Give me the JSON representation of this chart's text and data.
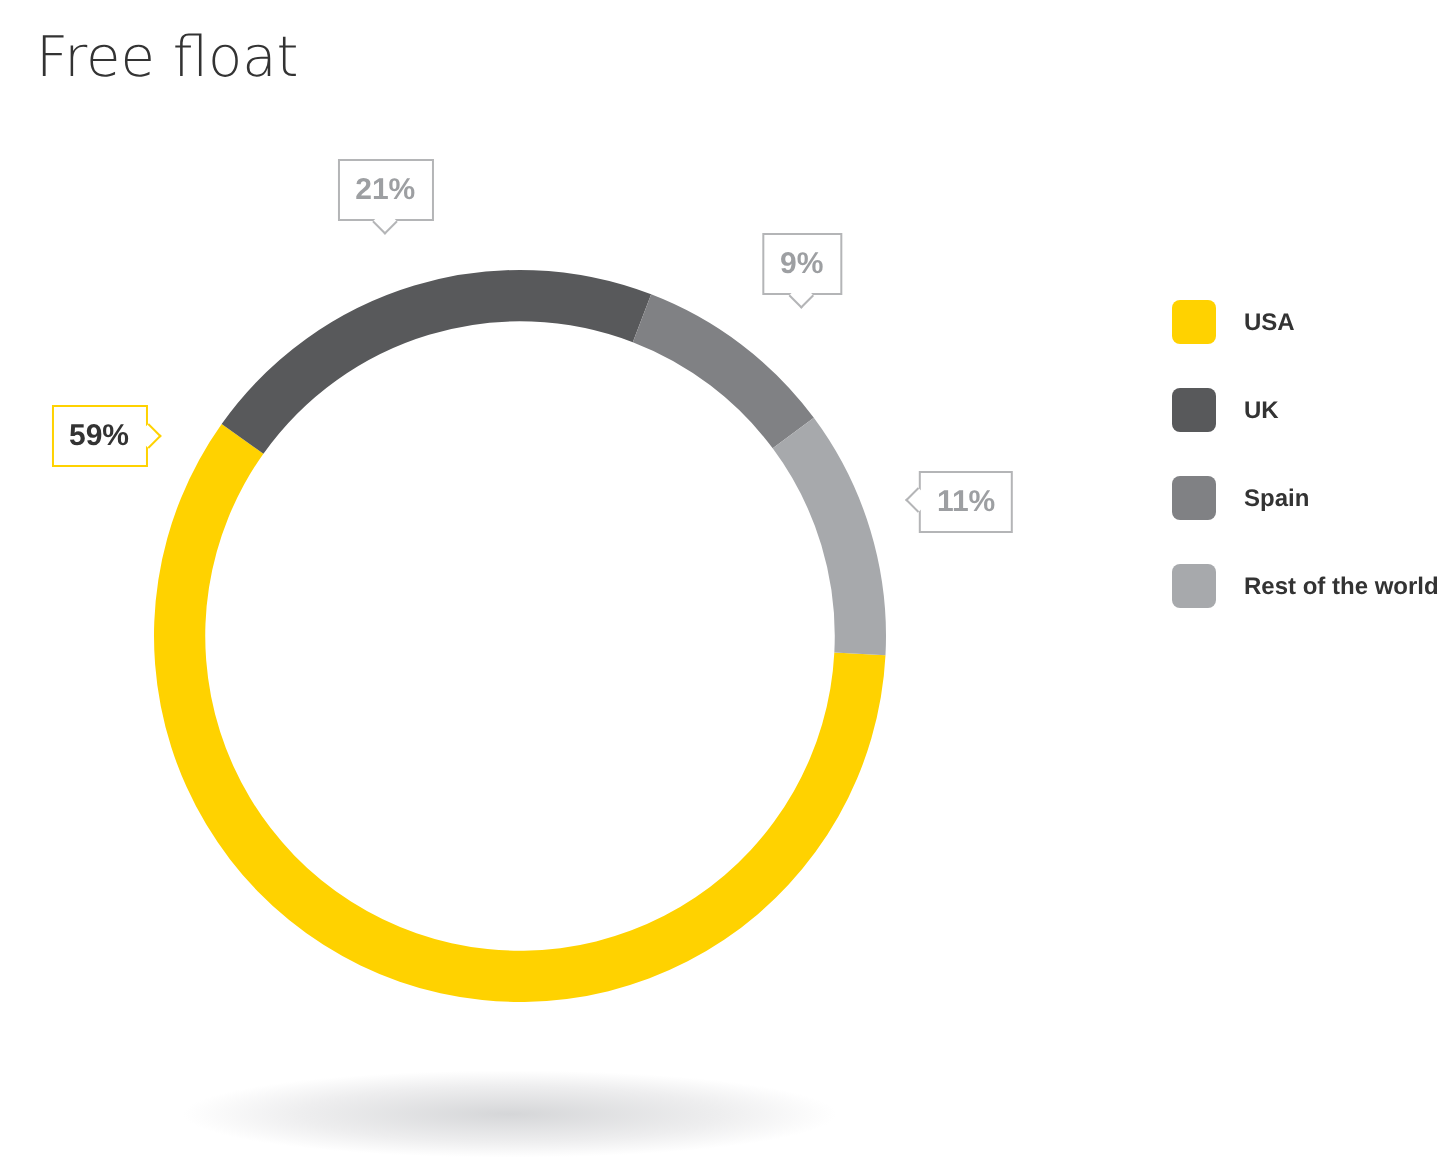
{
  "chart_data": {
    "type": "donut",
    "title": "Free float",
    "categories": [
      "USA",
      "UK",
      "Spain",
      "Rest of the world"
    ],
    "values": [
      59,
      21,
      9,
      11
    ],
    "value_labels": [
      "59%",
      "21%",
      "9%",
      "11%"
    ],
    "colors": [
      "#ffd200",
      "#58595b",
      "#808184",
      "#a7a9ac"
    ],
    "legend": "right"
  }
}
